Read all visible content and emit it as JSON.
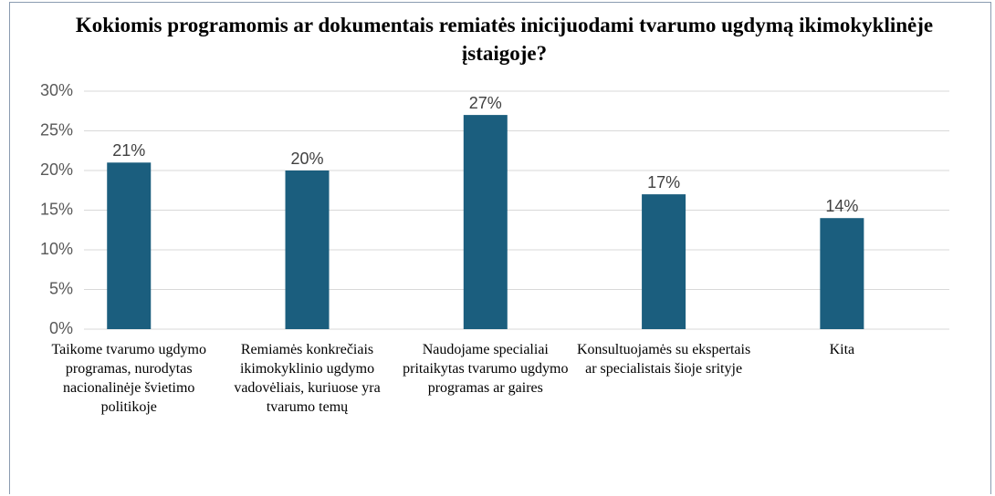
{
  "chart_data": {
    "type": "bar",
    "title": "Kokiomis programomis ar dokumentais remiatės inicijuodami tvarumo ugdymą ikimokyklinėje įstaigoje?",
    "categories": [
      "Taikome tvarumo ugdymo programas, nurodytas nacionalinėje švietimo politikoje",
      "Remiamės konkrečiais ikimokyklinio ugdymo vadovėliais, kuriuose yra tvarumo temų",
      "Naudojame specialiai pritaikytas tvarumo ugdymo programas ar gaires",
      "Konsultuojamės su ekspertais ar specialistais šioje srityje",
      "Kita"
    ],
    "values": [
      21,
      20,
      27,
      17,
      14
    ],
    "value_labels": [
      "21%",
      "20%",
      "27%",
      "17%",
      "14%"
    ],
    "color": "#1b5e7e",
    "ylim": [
      0,
      30
    ],
    "yticks": [
      {
        "value": 0,
        "label": "0%"
      },
      {
        "value": 5,
        "label": "5%"
      },
      {
        "value": 10,
        "label": "10%"
      },
      {
        "value": 15,
        "label": "15%"
      },
      {
        "value": 20,
        "label": "20%"
      },
      {
        "value": 25,
        "label": "25%"
      },
      {
        "value": 30,
        "label": "30%"
      }
    ],
    "grid": true
  }
}
